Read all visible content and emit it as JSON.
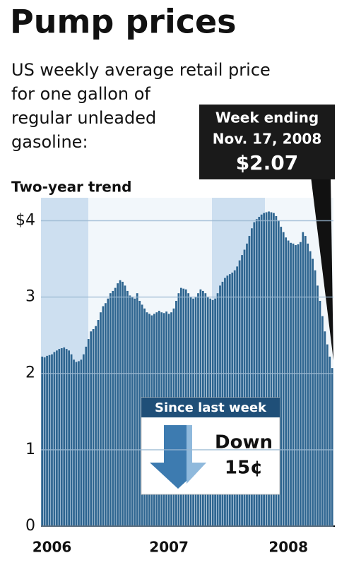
{
  "chart_data": {
    "type": "bar",
    "title": "Pump prices",
    "subtitle": [
      "US weekly average retail price",
      "for one gallon of",
      "regular unleaded",
      "gasoline:"
    ],
    "chart_label": "Two-year trend",
    "callout": [
      "Week ending",
      "Nov. 17, 2008",
      "$2.07"
    ],
    "change_title": "Since last week",
    "change_text": [
      "Down",
      "15¢"
    ],
    "color": "#2e6590",
    "ylim": [
      0,
      4.3
    ],
    "yticks": [
      0,
      1,
      2,
      3,
      {
        "value": 4,
        "label": "$4"
      }
    ],
    "grid": true,
    "categories": [
      null,
      null,
      null,
      null,
      "2006",
      null,
      null,
      null,
      null,
      null,
      null,
      null,
      null,
      null,
      null,
      null,
      null,
      null,
      null,
      null,
      null,
      null,
      null,
      null,
      null,
      null,
      null,
      null,
      null,
      null,
      null,
      null,
      null,
      null,
      null,
      null,
      null,
      null,
      null,
      null,
      null,
      null,
      null,
      null,
      null,
      null,
      null,
      null,
      null,
      null,
      null,
      null,
      "2007",
      null,
      null,
      null,
      null,
      null,
      null,
      null,
      null,
      null,
      null,
      null,
      null,
      null,
      null,
      null,
      null,
      null,
      null,
      null,
      null,
      null,
      null,
      null,
      null,
      null,
      null,
      null,
      null,
      null,
      null,
      null,
      null,
      null,
      null,
      null,
      null,
      null,
      null,
      null,
      null,
      null,
      null,
      null,
      null,
      null,
      null,
      null,
      null,
      "2008",
      null,
      null,
      null,
      null,
      null,
      null,
      null,
      null,
      null,
      null,
      null,
      null,
      null,
      null,
      null,
      null,
      null,
      null
    ],
    "values": [
      2.22,
      2.21,
      2.23,
      2.24,
      2.25,
      2.28,
      2.3,
      2.32,
      2.33,
      2.34,
      2.32,
      2.3,
      2.25,
      2.18,
      2.15,
      2.16,
      2.18,
      2.25,
      2.35,
      2.45,
      2.55,
      2.58,
      2.62,
      2.7,
      2.8,
      2.88,
      2.92,
      2.98,
      3.05,
      3.08,
      3.12,
      3.18,
      3.22,
      3.2,
      3.15,
      3.08,
      3.02,
      3.0,
      2.98,
      3.05,
      2.95,
      2.9,
      2.85,
      2.8,
      2.78,
      2.76,
      2.78,
      2.8,
      2.82,
      2.8,
      2.79,
      2.81,
      2.78,
      2.8,
      2.85,
      2.95,
      3.05,
      3.12,
      3.11,
      3.1,
      3.05,
      3.0,
      2.98,
      3.0,
      3.05,
      3.1,
      3.08,
      3.05,
      3.0,
      2.98,
      2.96,
      2.98,
      3.05,
      3.15,
      3.2,
      3.25,
      3.28,
      3.3,
      3.32,
      3.35,
      3.4,
      3.48,
      3.55,
      3.62,
      3.7,
      3.8,
      3.9,
      3.98,
      4.02,
      4.05,
      4.08,
      4.1,
      4.11,
      4.12,
      4.11,
      4.1,
      4.06,
      4.0,
      3.92,
      3.85,
      3.78,
      3.74,
      3.71,
      3.7,
      3.68,
      3.69,
      3.72,
      3.85,
      3.8,
      3.7,
      3.6,
      3.5,
      3.35,
      3.15,
      2.95,
      2.75,
      2.55,
      2.38,
      2.22,
      2.07
    ]
  }
}
